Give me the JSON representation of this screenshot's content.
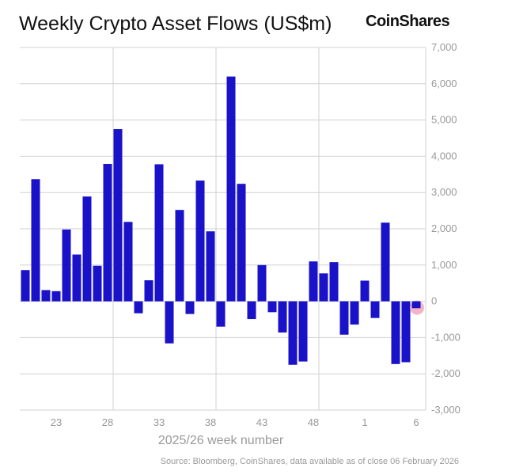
{
  "title": "Weekly Crypto Asset Flows (US$m)",
  "logo": "CoinShares",
  "source": "Source: Bloomberg, CoinShares, data available as of close 06 February 2026",
  "chart_data": {
    "type": "bar",
    "title": "Weekly Crypto Asset Flows (US$m)",
    "xlabel": "2025/26 week number",
    "ylabel": "",
    "ylim": [
      -3000,
      7000
    ],
    "yticks": [
      -3000,
      -2000,
      -1000,
      0,
      1000,
      2000,
      3000,
      4000,
      5000,
      6000,
      7000
    ],
    "ytick_labels": [
      "-3,000",
      "-2,000",
      "-1,000",
      "0",
      "1,000",
      "2,000",
      "3,000",
      "4,000",
      "5,000",
      "6,000",
      "7,000"
    ],
    "xtick_labels": [
      "23",
      "28",
      "33",
      "38",
      "43",
      "48",
      "1",
      "6"
    ],
    "grid": true,
    "bar_color": "#1a12c8",
    "highlight_color": "#f4a6b8",
    "highlight_week": "6",
    "categories": [
      "20",
      "21",
      "22",
      "23",
      "24",
      "25",
      "26",
      "27",
      "28",
      "29",
      "30",
      "31",
      "32",
      "33",
      "34",
      "35",
      "36",
      "37",
      "38",
      "39",
      "40",
      "41",
      "42",
      "43",
      "44",
      "45",
      "46",
      "47",
      "48",
      "49",
      "50",
      "51",
      "52",
      "1",
      "2",
      "3",
      "4",
      "5",
      "6"
    ],
    "values": [
      860,
      3370,
      310,
      280,
      1980,
      1290,
      2890,
      980,
      3790,
      4750,
      2190,
      -330,
      580,
      3780,
      -1160,
      2520,
      -350,
      3330,
      1930,
      -700,
      6200,
      3240,
      -490,
      1000,
      -300,
      -860,
      -1750,
      -1660,
      1100,
      770,
      1080,
      -920,
      -640,
      570,
      -460,
      2170,
      -1730,
      -1680,
      -190
    ]
  }
}
